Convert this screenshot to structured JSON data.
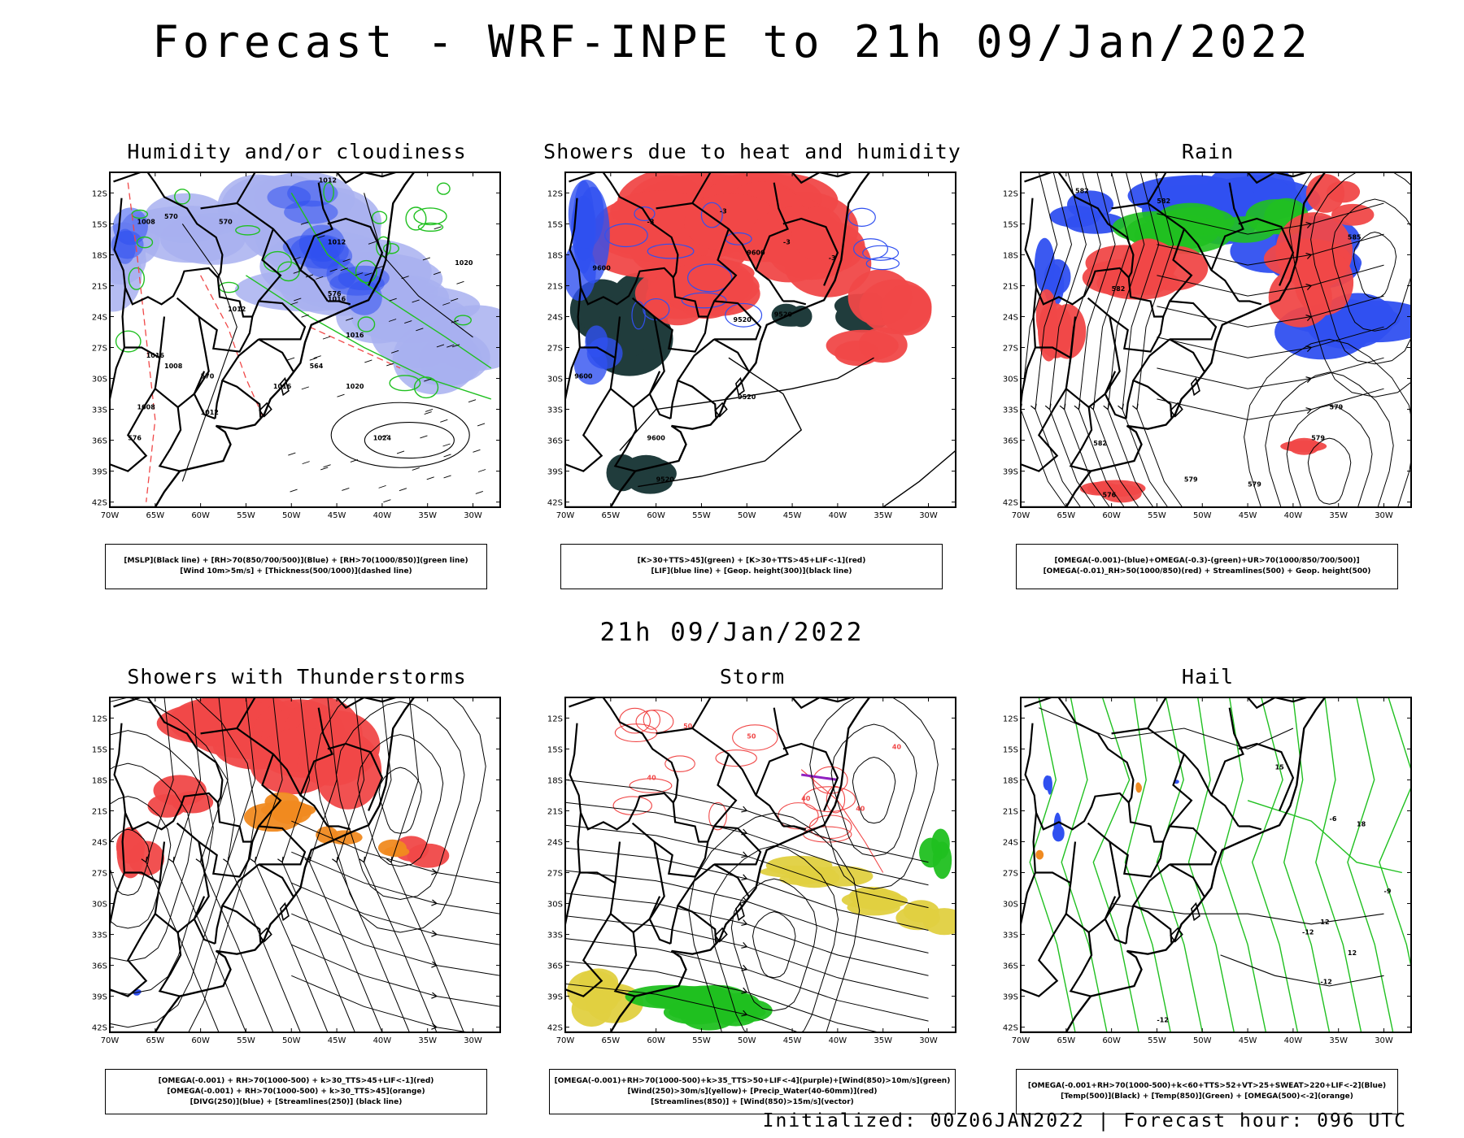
{
  "header": {
    "title": "Forecast - WRF-INPE to 21h 09/Jan/2022"
  },
  "mid_date": "21h 09/Jan/2022",
  "footer": "Initialized: 00Z06JAN2022 | Forecast hour: 096 UTC",
  "axes": {
    "lat_labels": [
      "12S",
      "15S",
      "18S",
      "21S",
      "24S",
      "27S",
      "30S",
      "33S",
      "36S",
      "39S",
      "42S"
    ],
    "lon_labels": [
      "70W",
      "65W",
      "60W",
      "55W",
      "50W",
      "45W",
      "40W",
      "35W",
      "30W"
    ]
  },
  "colors": {
    "red": "#f04848",
    "blue": "#3050f0",
    "green": "#20c020",
    "lightblue": "#a8b0f0",
    "purple": "#9020c0",
    "orange": "#f08a20",
    "yellow": "#e0d040",
    "darkteal": "#203c3c",
    "black": "#000000"
  },
  "panels": [
    {
      "title": "Humidity and/or cloudiness",
      "legend": [
        "[MSLP](Black line) + [RH>70(850/700/500)](Blue) + [RH>70(1000/850)](green line)",
        "[Wind 10m>5m/s] + [Thickness(500/1000)](dashed line)"
      ],
      "contour_labels": [
        "1012",
        "1008",
        "1012",
        "1016",
        "1008",
        "1016",
        "1012",
        "1016",
        "1020",
        "1024",
        "1012",
        "1008",
        "1016",
        "1020",
        "570",
        "570",
        "576",
        "564",
        "570",
        "576"
      ]
    },
    {
      "title": "Showers due to heat and humidity",
      "legend": [
        "[K>30+TTS>45](green) + [K>30+TTS>45+LIF<-1](red)",
        "[LIF](blue line) + [Geop. height(300)](black line)"
      ],
      "contour_labels": [
        "9600",
        "9600",
        "9520",
        "9600",
        "9520",
        "9600",
        "9520",
        "9520",
        "-3",
        "-3",
        "-3",
        "-3"
      ]
    },
    {
      "title": "Rain",
      "legend": [
        "[OMEGA(-0.001)-(blue)+OMEGA(-0.3)-(green)+UR>70(1000/850/700/500)]",
        "[OMEGA(-0.01)_RH>50(1000/850)(red) + Streamlines(500) + Geop. height(500)"
      ],
      "contour_labels": [
        "582",
        "582",
        "585",
        "582",
        "579",
        "579",
        "579",
        "579",
        "582",
        "576"
      ]
    },
    {
      "title": "Showers with Thunderstorms",
      "legend": [
        "[OMEGA(-0.001) + RH>70(1000-500) + k>30_TTS>45+LIF<-1](red)",
        "[OMEGA(-0.001) + RH>70(1000-500) + k>30_TTS>45](orange)",
        "[DIVG(250)](blue) + [Streamlines(250)] (black line)"
      ],
      "contour_labels": []
    },
    {
      "title": "Storm",
      "legend": [
        "[OMEGA(-0.001)+RH>70(1000-500)+k>35_TTS>50+LIF<-4](purple)+[Wind(850)>10m/s](green)",
        "[Wind(250)>30m/s](yellow)+ [Precip_Water(40-60mm)](red)",
        "[Streamlines(850)] + [Wind(850)>15m/s](vector)"
      ],
      "contour_labels": [
        "50",
        "40",
        "50",
        "40",
        "40",
        "40"
      ]
    },
    {
      "title": "Hail",
      "legend": [
        "[OMEGA(-0.001+RH>70(1000-500)+k<60+TTS>52+VT>25+SWEAT>220+LIF<-2](Blue)",
        "[Temp(500)](Black) + [Temp(850)](Green) + [OMEGA(500)<-2](orange)"
      ],
      "contour_labels": [
        "-12",
        "-12",
        "-12",
        "-9",
        "-6",
        "12",
        "12",
        "15",
        "18"
      ]
    }
  ]
}
